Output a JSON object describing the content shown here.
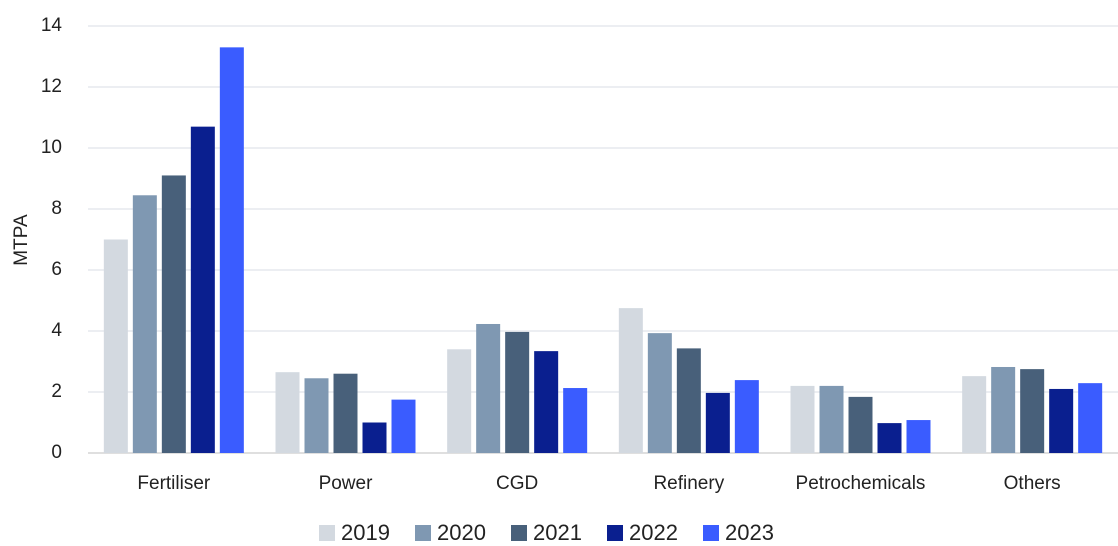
{
  "chart_data": {
    "type": "bar",
    "y_label": "MTPA",
    "categories": [
      "Fertiliser",
      "Power",
      "CGD",
      "Refinery",
      "Petrochemicals",
      "Others"
    ],
    "series": [
      {
        "name": "2019",
        "color": "#d3d9e0",
        "values": [
          7.0,
          2.65,
          3.4,
          4.75,
          2.2,
          2.52
        ]
      },
      {
        "name": "2020",
        "color": "#7f98b2",
        "values": [
          8.45,
          2.45,
          4.23,
          3.93,
          2.2,
          2.82
        ]
      },
      {
        "name": "2021",
        "color": "#48607a",
        "values": [
          9.1,
          2.6,
          3.97,
          3.43,
          1.84,
          2.75
        ]
      },
      {
        "name": "2022",
        "color": "#0a1f8f",
        "values": [
          10.7,
          1.0,
          3.34,
          1.97,
          0.98,
          2.1
        ]
      },
      {
        "name": "2023",
        "color": "#3a5cff",
        "values": [
          13.3,
          1.75,
          2.13,
          2.39,
          1.08,
          2.29
        ]
      }
    ],
    "ylim": [
      0,
      14
    ],
    "yticks": [
      0,
      2,
      4,
      6,
      8,
      10,
      12,
      14
    ],
    "grid": true,
    "legend": "bottom"
  }
}
